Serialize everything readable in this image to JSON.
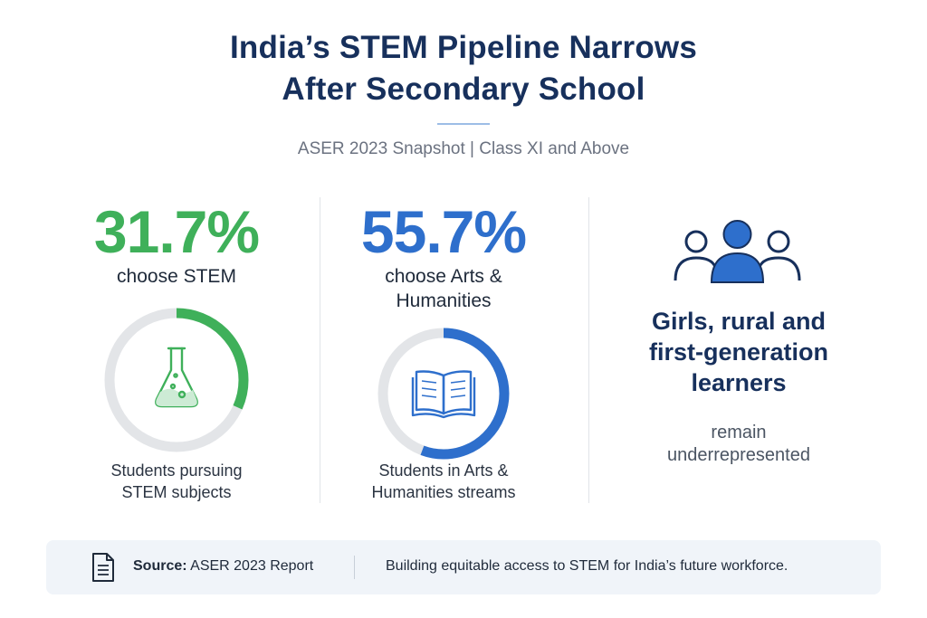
{
  "header": {
    "title_line1": "India’s STEM Pipeline Narrows",
    "title_line2": "After Secondary School",
    "subtitle": "ASER 2023 Snapshot | Class XI and Above"
  },
  "chart_data": [
    {
      "type": "pie",
      "name": "STEM",
      "value_text": "31.7%",
      "value": 31.7,
      "label": "choose STEM",
      "caption_line1": "Students pursuing",
      "caption_line2": "STEM subjects",
      "color": "#3fb05a",
      "track_color": "#e3e5e8",
      "icon": "flask-icon"
    },
    {
      "type": "pie",
      "name": "Arts & Humanities",
      "value_text": "55.7%",
      "value": 55.7,
      "label_line1": "choose Arts &",
      "label_line2": "Humanities",
      "caption_line1": "Students in Arts &",
      "caption_line2": "Humanities streams",
      "color": "#2e6fcc",
      "track_color": "#e3e5e8",
      "icon": "open-book-icon"
    }
  ],
  "highlight": {
    "line1": "Girls, rural and",
    "line2": "first-generation",
    "line3": "learners",
    "sub_line1": "remain",
    "sub_line2": "underrepresented",
    "icon": "people-group-icon",
    "color": "#2e6fcc"
  },
  "footer": {
    "source_label": "Source:",
    "source_value": "ASER 2023 Report",
    "note": "Building equitable access to STEM for India’s future workforce.",
    "icon": "document-icon"
  }
}
